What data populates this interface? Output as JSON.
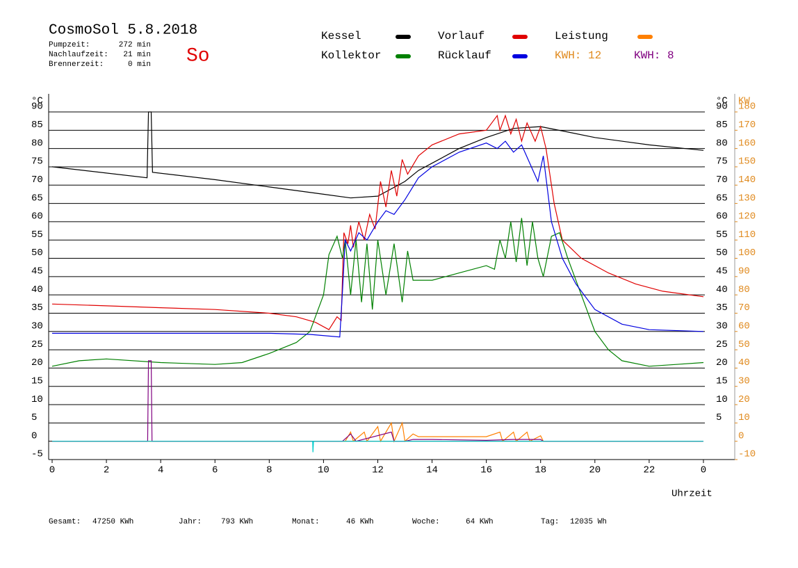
{
  "header": {
    "title": "CosmoSol 5.8.2018",
    "day": "So",
    "stats": [
      {
        "label": "Pumpzeit:",
        "value": "272 min"
      },
      {
        "label": "Nachlaufzeit:",
        "value": "21 min"
      },
      {
        "label": "Brennerzeit:",
        "value": "0 min"
      }
    ],
    "kwh": [
      {
        "label": "KWH: 12",
        "color": "#e08a1e"
      },
      {
        "label": "KWH: 8",
        "color": "#800080"
      }
    ]
  },
  "footer": [
    {
      "label": "Gesamt:",
      "value": "47250 KWh"
    },
    {
      "label": "Jahr:",
      "value": "793 KWh"
    },
    {
      "label": "Monat:",
      "value": "46 KWh"
    },
    {
      "label": "Woche:",
      "value": "64 KWh"
    },
    {
      "label": "Tag:",
      "value": "12035 Wh"
    }
  ],
  "chart_data": {
    "type": "line",
    "x_label": "Uhrzeit",
    "y_label": "°C",
    "y_right_label": "°C",
    "y2_label": "KW",
    "grid": true,
    "xlim": [
      0,
      25
    ],
    "xticks": [
      0,
      2,
      4,
      6,
      8,
      10,
      12,
      14,
      16,
      18,
      20,
      22,
      {
        "value": 24,
        "label": "0"
      }
    ],
    "ylim": [
      -5,
      90
    ],
    "yticks": [
      -5,
      0,
      5,
      10,
      15,
      20,
      25,
      30,
      35,
      40,
      45,
      50,
      55,
      60,
      65,
      70,
      75,
      80,
      85,
      90
    ],
    "y_right_ticks": [
      5,
      10,
      15,
      20,
      25,
      30,
      35,
      40,
      45,
      50,
      55,
      60,
      65,
      70,
      75,
      80,
      85,
      90
    ],
    "y2lim": [
      -10,
      180
    ],
    "y2ticks": [
      -10,
      0,
      10,
      20,
      30,
      40,
      50,
      60,
      70,
      80,
      90,
      100,
      110,
      120,
      130,
      140,
      150,
      160,
      170,
      180
    ],
    "series": [
      {
        "name": "Kessel",
        "color": "#000000",
        "x": [
          0,
          3.5,
          3.55,
          3.65,
          3.7,
          6,
          8,
          10,
          11,
          12,
          13,
          13.5,
          14,
          15,
          16,
          17,
          18,
          19,
          20,
          22,
          24
        ],
        "values": [
          75,
          72,
          90,
          90,
          73.5,
          71.5,
          69.5,
          67.5,
          66.5,
          67,
          71,
          74,
          76,
          80,
          83,
          85.5,
          86,
          84.5,
          83,
          81,
          79.5
        ]
      },
      {
        "name": "Vorlauf",
        "color": "#e00000",
        "x": [
          0,
          2,
          4,
          6,
          8,
          9,
          9.7,
          10.2,
          10.5,
          10.65,
          10.75,
          10.9,
          11,
          11.1,
          11.3,
          11.5,
          11.7,
          11.9,
          12.1,
          12.3,
          12.5,
          12.7,
          12.9,
          13.1,
          13.5,
          14,
          15,
          16,
          16.4,
          16.5,
          16.7,
          16.9,
          17.1,
          17.3,
          17.5,
          17.8,
          18,
          18.2,
          18.5,
          18.8,
          19.5,
          20.5,
          21.5,
          22.5,
          24
        ],
        "values": [
          37.5,
          37,
          36.5,
          36,
          35,
          34,
          32.5,
          30.5,
          34,
          33,
          57,
          54,
          59,
          53,
          60,
          55,
          62,
          58,
          71,
          64,
          74,
          67,
          77,
          73,
          78,
          81,
          84,
          85,
          89,
          85,
          89,
          84,
          88,
          82,
          87,
          82,
          86,
          80,
          65,
          55,
          50,
          46,
          43,
          41,
          39.5
        ]
      },
      {
        "name": "Leistung",
        "color": "#ff8000",
        "axis": "y2",
        "x": [
          0,
          10.8,
          11,
          11.1,
          11.5,
          11.6,
          12,
          12.1,
          12.5,
          12.6,
          12.9,
          13,
          13.3,
          13.5,
          16,
          16.5,
          16.6,
          17,
          17.1,
          17.5,
          17.6,
          18,
          18.1,
          24
        ],
        "values": [
          0,
          0,
          5,
          0,
          5,
          0,
          8,
          0,
          10,
          0,
          10,
          0,
          4,
          2.5,
          2.5,
          5,
          0,
          5,
          0,
          5,
          0,
          3,
          0,
          0
        ]
      },
      {
        "name": "Kollektor",
        "color": "#008000",
        "x": [
          0,
          1,
          2,
          4,
          6,
          7,
          8,
          9,
          9.5,
          10,
          10.2,
          10.5,
          10.7,
          10.8,
          11,
          11.2,
          11.4,
          11.6,
          11.8,
          12,
          12.3,
          12.6,
          12.9,
          13.1,
          13.3,
          14,
          15,
          16,
          16.3,
          16.5,
          16.7,
          16.9,
          17.1,
          17.3,
          17.5,
          17.7,
          17.9,
          18.1,
          18.4,
          18.7,
          19,
          19.5,
          20,
          20.5,
          21,
          22,
          23,
          24
        ],
        "values": [
          20.5,
          22,
          22.5,
          21.5,
          21,
          21.5,
          24,
          27,
          30,
          40,
          51,
          56,
          50,
          55,
          40,
          55,
          38,
          54,
          36,
          55,
          40,
          54,
          38,
          52,
          44,
          44,
          46,
          48,
          47,
          55,
          50,
          60,
          49,
          61,
          48,
          60,
          50,
          45,
          56,
          57,
          50,
          40,
          30,
          25,
          22,
          20.5,
          21,
          21.5
        ]
      },
      {
        "name": "Rücklauf",
        "color": "#0000e0",
        "x": [
          0,
          4,
          8,
          9.5,
          10.6,
          10.7,
          10.8,
          11,
          11.3,
          11.6,
          12,
          12.3,
          12.6,
          13,
          13.5,
          14,
          15,
          16,
          16.4,
          16.7,
          17,
          17.3,
          17.6,
          17.9,
          18.1,
          18.4,
          18.8,
          19.3,
          20,
          21,
          22,
          24
        ],
        "values": [
          29.5,
          29.5,
          29.5,
          29.2,
          28.5,
          41,
          55,
          52,
          57,
          55,
          60,
          63,
          62,
          66,
          72,
          75,
          79,
          81.5,
          80,
          82,
          79,
          81,
          76,
          71,
          78,
          60,
          50,
          43,
          36,
          32,
          30.5,
          30
        ]
      },
      {
        "color": "#800080",
        "axis": "y2",
        "x": [
          0,
          3.52,
          3.55,
          3.65,
          3.68,
          10.7,
          11,
          11.2,
          12.5,
          12.6,
          13,
          13.3,
          14,
          16,
          17,
          18,
          18.1,
          24
        ],
        "values": [
          0,
          0,
          44,
          44,
          0,
          0,
          4,
          0,
          5,
          0,
          0,
          1,
          1,
          0.5,
          1,
          1,
          0,
          0
        ]
      },
      {
        "color": "#00cccc",
        "x": [
          0,
          9.6,
          9.61,
          9.63,
          24
        ],
        "values": [
          0,
          0,
          -3,
          0,
          0
        ]
      }
    ]
  }
}
